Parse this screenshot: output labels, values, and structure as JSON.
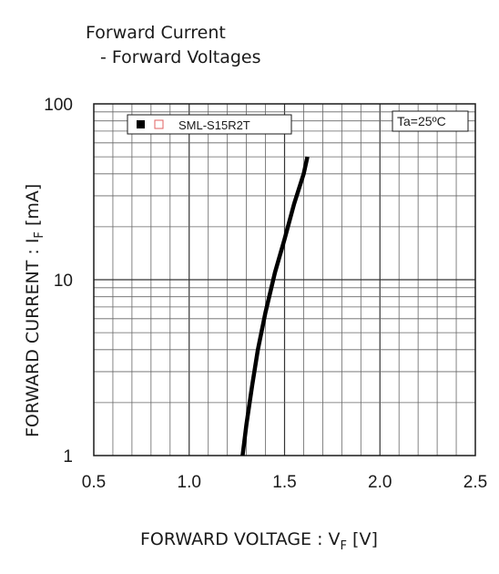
{
  "title": {
    "line1": "Forward Current",
    "line2": "- Forward Voltages"
  },
  "chart_data": {
    "type": "line",
    "xlabel": "FORWARD VOLTAGE : V",
    "xlabel_sub": "F",
    "xlabel_unit": " [V]",
    "ylabel": "FORWARD CURRENT : I",
    "ylabel_sub": "F",
    "ylabel_unit": " [mA]",
    "xlim": [
      0.5,
      2.5
    ],
    "ylim": [
      1,
      100
    ],
    "y_scale": "log",
    "x_ticks": [
      "0.5",
      "1.0",
      "1.5",
      "2.0",
      "2.5"
    ],
    "y_ticks": [
      "1",
      "10",
      "100"
    ],
    "grid": true,
    "legend": {
      "placement": "top-left",
      "filled_marker_color": "#000000",
      "open_marker_color": "#e06060",
      "label": "SML-S15R2T"
    },
    "annotation": "Ta=25ºC",
    "series": [
      {
        "name": "SML-S15R2T",
        "color": "#000000",
        "x": [
          1.28,
          1.3,
          1.33,
          1.36,
          1.4,
          1.45,
          1.5,
          1.55,
          1.6,
          1.62
        ],
        "y": [
          1,
          1.5,
          2.5,
          4,
          6.5,
          11,
          17,
          27,
          40,
          50
        ]
      }
    ]
  }
}
